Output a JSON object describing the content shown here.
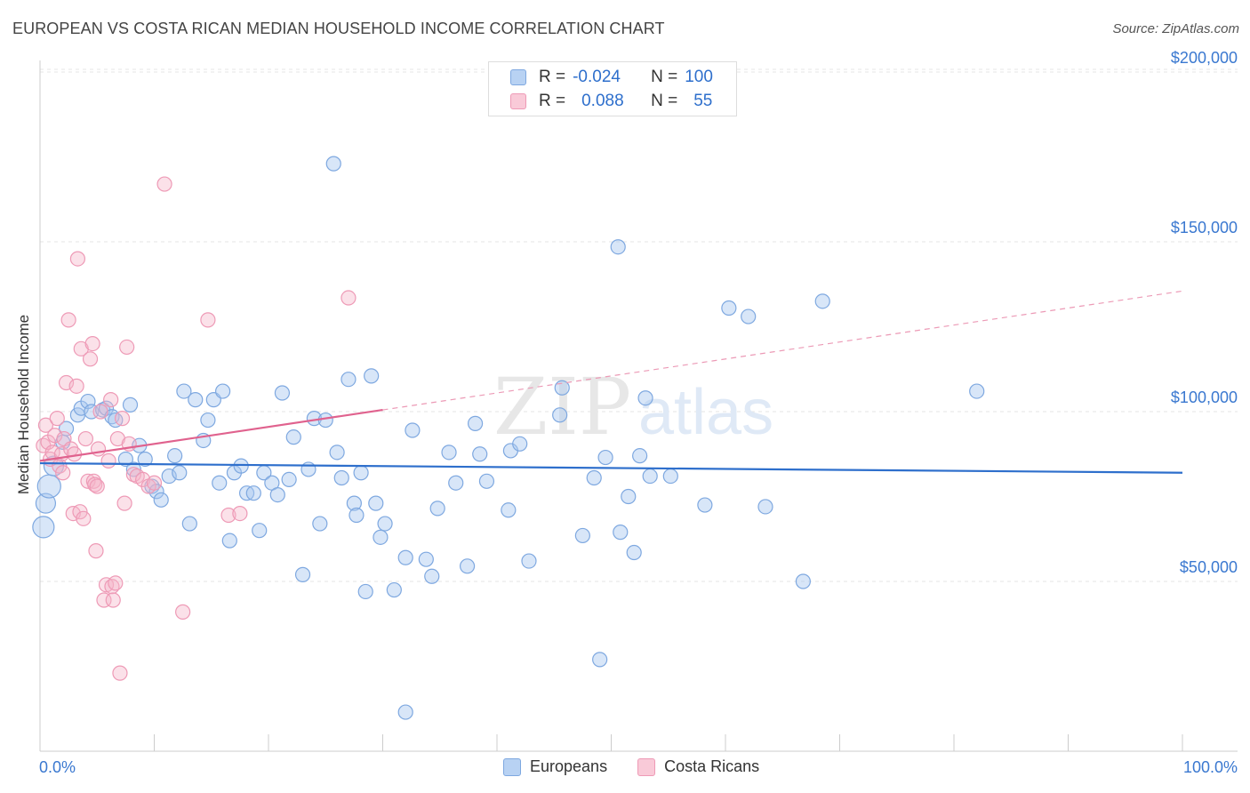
{
  "header": {
    "title": "EUROPEAN VS COSTA RICAN MEDIAN HOUSEHOLD INCOME CORRELATION CHART",
    "source": "Source: ZipAtlas.com"
  },
  "legend": {
    "row1": {
      "r_label": "R =",
      "r_value": "-0.024",
      "n_label": "N =",
      "n_value": "100"
    },
    "row2": {
      "r_label": "R =",
      "r_value": "0.088",
      "n_label": "N =",
      "n_value": "55"
    }
  },
  "watermark": {
    "zip": "ZIP",
    "atlas": "atlas"
  },
  "chart_data": {
    "type": "scatter",
    "title": "EUROPEAN VS COSTA RICAN MEDIAN HOUSEHOLD INCOME CORRELATION CHART",
    "xlabel": "",
    "ylabel": "Median Household Income",
    "xlim": [
      0,
      100
    ],
    "ylim": [
      0,
      210000
    ],
    "x_tick_labels": [
      "0.0%",
      "100.0%"
    ],
    "y_ticks": [
      50000,
      100000,
      150000,
      200000
    ],
    "y_tick_labels": [
      "$50,000",
      "$100,000",
      "$150,000",
      "$200,000"
    ],
    "grid": true,
    "colors": {
      "Europeans": "#a9c8f0",
      "Costa Ricans": "#f5b3c8",
      "blue_line": "#2e6fcc",
      "pink_line": "#e0628e",
      "tick_text": "#3a78d0"
    },
    "series": [
      {
        "name": "Europeans",
        "r": -0.024,
        "n": 100,
        "trend": {
          "x0": 0,
          "y0": 84800,
          "x1": 100,
          "y1": 82000
        },
        "points": [
          [
            0.3,
            66000
          ],
          [
            0.5,
            73000
          ],
          [
            0.8,
            78000
          ],
          [
            1.2,
            84000
          ],
          [
            2.0,
            91000
          ],
          [
            2.3,
            95000
          ],
          [
            3.3,
            99000
          ],
          [
            3.6,
            101000
          ],
          [
            4.2,
            103000
          ],
          [
            4.5,
            100000
          ],
          [
            5.5,
            100500
          ],
          [
            5.8,
            101000
          ],
          [
            6.3,
            98500
          ],
          [
            6.6,
            97500
          ],
          [
            7.5,
            86000
          ],
          [
            7.9,
            102000
          ],
          [
            8.2,
            83000
          ],
          [
            8.7,
            90000
          ],
          [
            9.2,
            86000
          ],
          [
            9.8,
            78000
          ],
          [
            10.2,
            76500
          ],
          [
            10.6,
            74000
          ],
          [
            11.3,
            81000
          ],
          [
            11.8,
            87000
          ],
          [
            12.2,
            82000
          ],
          [
            12.6,
            106000
          ],
          [
            13.1,
            67000
          ],
          [
            13.6,
            103500
          ],
          [
            14.3,
            91500
          ],
          [
            14.7,
            97500
          ],
          [
            15.2,
            103500
          ],
          [
            16.0,
            106000
          ],
          [
            15.7,
            79000
          ],
          [
            16.6,
            62000
          ],
          [
            17.0,
            82000
          ],
          [
            17.6,
            84000
          ],
          [
            18.1,
            76000
          ],
          [
            18.7,
            76000
          ],
          [
            19.2,
            65000
          ],
          [
            19.6,
            82000
          ],
          [
            20.3,
            79000
          ],
          [
            20.8,
            75500
          ],
          [
            21.2,
            105500
          ],
          [
            21.8,
            80000
          ],
          [
            22.2,
            92500
          ],
          [
            23.0,
            52000
          ],
          [
            23.5,
            83000
          ],
          [
            24.0,
            98000
          ],
          [
            24.5,
            67000
          ],
          [
            25.0,
            97500
          ],
          [
            25.7,
            173000
          ],
          [
            26.0,
            88000
          ],
          [
            26.4,
            80500
          ],
          [
            27.0,
            109500
          ],
          [
            27.5,
            73000
          ],
          [
            27.7,
            69500
          ],
          [
            28.1,
            82000
          ],
          [
            28.5,
            47000
          ],
          [
            29.0,
            110500
          ],
          [
            29.4,
            73000
          ],
          [
            29.8,
            63000
          ],
          [
            30.2,
            67000
          ],
          [
            31.0,
            47500
          ],
          [
            32.0,
            57000
          ],
          [
            32.6,
            94500
          ],
          [
            33.8,
            56500
          ],
          [
            34.3,
            51500
          ],
          [
            34.8,
            71500
          ],
          [
            35.8,
            88000
          ],
          [
            36.4,
            79000
          ],
          [
            37.4,
            54500
          ],
          [
            38.1,
            96500
          ],
          [
            38.5,
            87500
          ],
          [
            39.1,
            79500
          ],
          [
            41.0,
            71000
          ],
          [
            41.2,
            88500
          ],
          [
            42.0,
            90500
          ],
          [
            42.8,
            56000
          ],
          [
            45.5,
            99000
          ],
          [
            45.7,
            107000
          ],
          [
            47.5,
            63500
          ],
          [
            48.5,
            80500
          ],
          [
            49.0,
            27000
          ],
          [
            49.5,
            86500
          ],
          [
            50.6,
            148500
          ],
          [
            50.8,
            64500
          ],
          [
            51.5,
            75000
          ],
          [
            52.0,
            58500
          ],
          [
            52.5,
            87000
          ],
          [
            53.0,
            104000
          ],
          [
            53.4,
            81000
          ],
          [
            55.2,
            81000
          ],
          [
            58.2,
            72500
          ],
          [
            60.3,
            130500
          ],
          [
            62.0,
            128000
          ],
          [
            63.5,
            72000
          ],
          [
            66.8,
            50000
          ],
          [
            68.5,
            132500
          ],
          [
            82.0,
            106000
          ],
          [
            32.0,
            11500
          ]
        ]
      },
      {
        "name": "Costa Ricans",
        "r": 0.088,
        "n": 55,
        "trend_solid": {
          "x0": 0,
          "y0": 85500,
          "x1": 30,
          "y1": 100500
        },
        "trend_dashed": {
          "x0": 30,
          "y0": 100500,
          "x1": 100,
          "y1": 135500
        },
        "points": [
          [
            0.3,
            90000
          ],
          [
            0.5,
            96000
          ],
          [
            0.7,
            91000
          ],
          [
            0.9,
            86000
          ],
          [
            1.1,
            88000
          ],
          [
            1.3,
            93000
          ],
          [
            1.5,
            98000
          ],
          [
            1.7,
            84000
          ],
          [
            1.9,
            87500
          ],
          [
            2.0,
            82000
          ],
          [
            2.1,
            92000
          ],
          [
            2.3,
            108500
          ],
          [
            2.5,
            127000
          ],
          [
            2.7,
            89000
          ],
          [
            2.9,
            70000
          ],
          [
            3.0,
            87500
          ],
          [
            3.2,
            107500
          ],
          [
            3.3,
            145000
          ],
          [
            3.5,
            70500
          ],
          [
            3.6,
            118500
          ],
          [
            3.8,
            68500
          ],
          [
            4.0,
            92000
          ],
          [
            4.2,
            79500
          ],
          [
            4.4,
            115500
          ],
          [
            4.6,
            120000
          ],
          [
            4.7,
            79500
          ],
          [
            4.8,
            78500
          ],
          [
            4.9,
            59000
          ],
          [
            5.0,
            78000
          ],
          [
            5.1,
            89000
          ],
          [
            5.3,
            100000
          ],
          [
            5.6,
            44500
          ],
          [
            5.8,
            49000
          ],
          [
            6.0,
            85500
          ],
          [
            6.2,
            103500
          ],
          [
            6.3,
            48500
          ],
          [
            6.4,
            44500
          ],
          [
            6.6,
            49500
          ],
          [
            6.8,
            92000
          ],
          [
            7.0,
            23000
          ],
          [
            7.2,
            98000
          ],
          [
            7.4,
            73000
          ],
          [
            7.6,
            119000
          ],
          [
            7.8,
            90500
          ],
          [
            8.2,
            81500
          ],
          [
            8.5,
            81000
          ],
          [
            9.0,
            80000
          ],
          [
            9.5,
            78000
          ],
          [
            10.0,
            79000
          ],
          [
            10.9,
            167000
          ],
          [
            12.5,
            41000
          ],
          [
            14.7,
            127000
          ],
          [
            16.5,
            69500
          ],
          [
            17.5,
            70000
          ],
          [
            27.0,
            133500
          ]
        ]
      }
    ]
  },
  "bottom_legend": {
    "europeans_label": "Europeans",
    "costa_ricans_label": "Costa Ricans"
  }
}
